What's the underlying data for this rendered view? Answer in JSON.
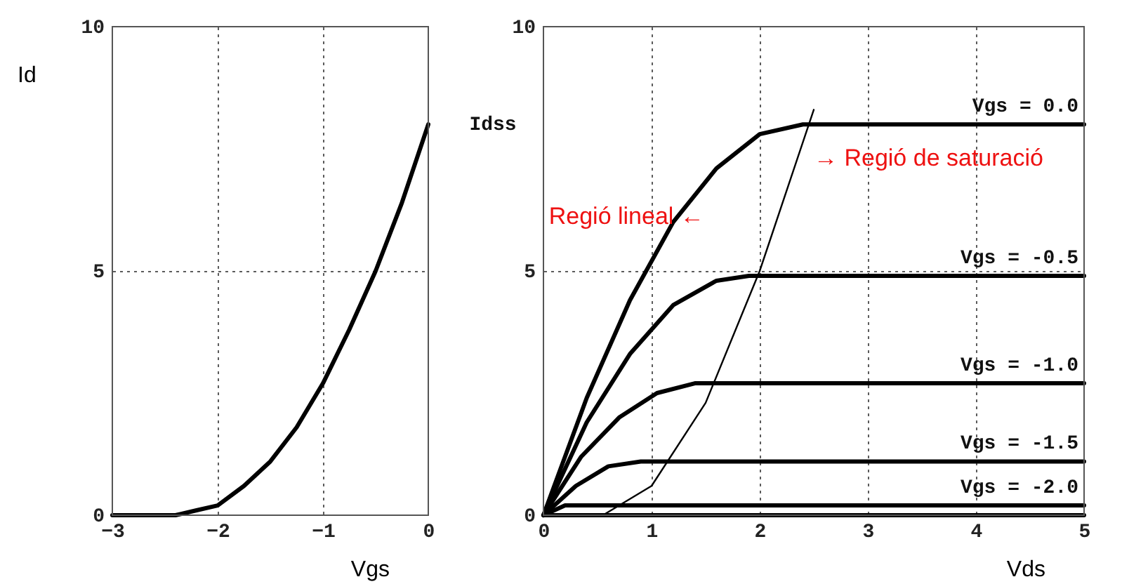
{
  "chart_data": [
    {
      "type": "line",
      "xlabel": "Vgs",
      "ylabel": "Id",
      "xlim": [
        -3,
        0
      ],
      "ylim": [
        0,
        10
      ],
      "xticks": [
        -3,
        -2,
        -1,
        0
      ],
      "yticks": [
        0,
        5,
        10
      ],
      "grid": true,
      "series": [
        {
          "color": "#000000",
          "x": [
            -3,
            -2.4,
            -2.2,
            -2,
            -1.75,
            -1.5,
            -1.25,
            -1,
            -0.75,
            -0.5,
            -0.25,
            0
          ],
          "values": [
            0,
            0,
            0.1,
            0.2,
            0.6,
            1.1,
            1.8,
            2.7,
            3.8,
            5.0,
            6.4,
            8.0
          ]
        }
      ]
    },
    {
      "type": "line",
      "xlabel": "Vds",
      "xlim": [
        0,
        5
      ],
      "ylim": [
        0,
        10
      ],
      "xticks": [
        0,
        1,
        2,
        3,
        4,
        5
      ],
      "yticks": [
        0,
        5,
        10
      ],
      "grid": true,
      "annotations": [
        "Idss",
        "→ Regió de saturació",
        "Regió lineal ←"
      ],
      "series": [
        {
          "name": "Vgs = 0.0",
          "color": "#000000",
          "x": [
            0,
            0.4,
            0.8,
            1.2,
            1.6,
            2.0,
            2.4,
            5
          ],
          "values": [
            0,
            2.4,
            4.4,
            6.0,
            7.1,
            7.8,
            8.0,
            8.0
          ]
        },
        {
          "name": "Vgs = -0.5",
          "color": "#000000",
          "x": [
            0,
            0.4,
            0.8,
            1.2,
            1.6,
            1.9,
            5
          ],
          "values": [
            0,
            1.9,
            3.3,
            4.3,
            4.8,
            4.9,
            4.9
          ]
        },
        {
          "name": "Vgs = -1.0",
          "color": "#000000",
          "x": [
            0,
            0.35,
            0.7,
            1.05,
            1.4,
            5
          ],
          "values": [
            0,
            1.2,
            2.0,
            2.5,
            2.7,
            2.7
          ]
        },
        {
          "name": "Vgs = -1.5",
          "color": "#000000",
          "x": [
            0,
            0.3,
            0.6,
            0.9,
            5
          ],
          "values": [
            0,
            0.6,
            1.0,
            1.1,
            1.1
          ]
        },
        {
          "name": "Vgs = -2.0",
          "color": "#000000",
          "x": [
            0,
            0.2,
            0.4,
            5
          ],
          "values": [
            0,
            0.2,
            0.2,
            0.2
          ]
        },
        {
          "color": "#000000",
          "x": [
            0,
            5
          ],
          "values": [
            0,
            0
          ]
        },
        {
          "color": "#000000",
          "x": [
            0.55,
            1,
            1.5,
            2,
            2.5
          ],
          "values": [
            0,
            0.6,
            2.3,
            5.0,
            8.3
          ]
        }
      ]
    }
  ]
}
